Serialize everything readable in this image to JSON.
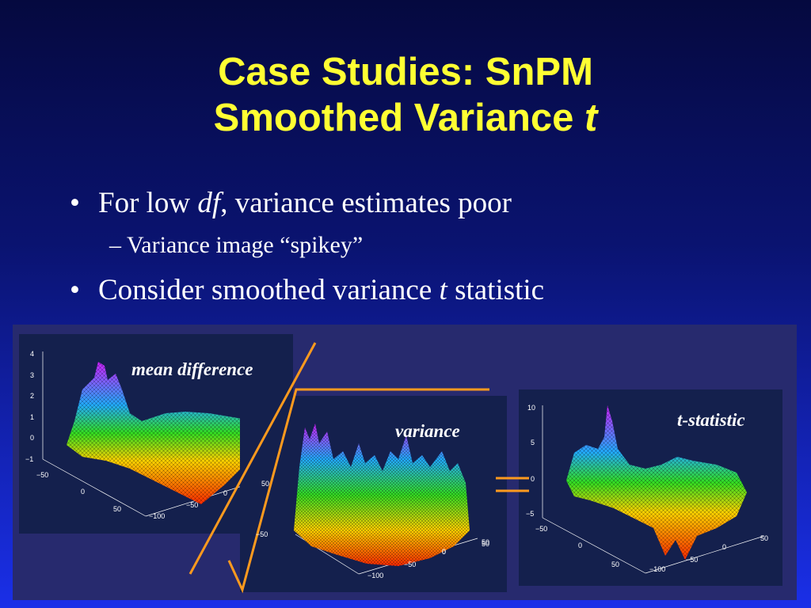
{
  "slide": {
    "title_line1": "Case Studies: SnPM",
    "title_line2": "Smoothed Variance",
    "title_line2_italic": "t",
    "bullets": [
      {
        "bullet": "•",
        "text_pre": "For low ",
        "text_em": "df",
        "text_post": ", variance estimates poor"
      },
      {
        "dash": "–",
        "text": "Variance image “spikey”"
      },
      {
        "bullet": "•",
        "text_pre": "Consider smoothed variance ",
        "text_em": "t",
        "text_post": " statistic"
      }
    ]
  },
  "plots": {
    "mean_difference": {
      "label": "mean difference",
      "z_ticks": [
        "4",
        "3",
        "2",
        "1",
        "0",
        "−1"
      ],
      "x_ticks": [
        "−50",
        "0",
        "50"
      ],
      "y_ticks": [
        "−100",
        "−50",
        "0",
        "50"
      ]
    },
    "variance": {
      "label": "variance",
      "z_ticks": [
        "−50"
      ],
      "x_ticks": [
        "0",
        "50"
      ],
      "y_ticks": [
        "−100",
        "−50",
        "0",
        "50"
      ]
    },
    "t_statistic": {
      "label": "t-statistic",
      "z_ticks": [
        "10",
        "5",
        "0",
        "−5"
      ],
      "x_ticks": [
        "−50",
        "0",
        "50"
      ],
      "y_ticks": [
        "−100",
        "−50",
        "0",
        "50"
      ]
    }
  },
  "colors": {
    "title": "#ffff33",
    "text": "#ffffff",
    "annotation_lines": "#ff9a1e"
  }
}
